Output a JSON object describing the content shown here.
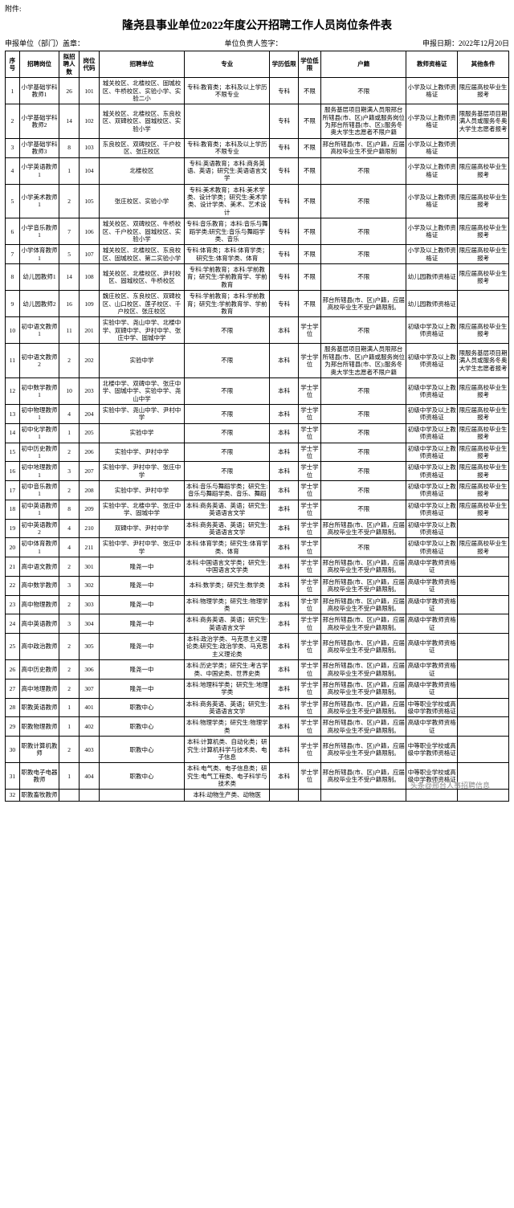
{
  "header": {
    "attachment": "附件:",
    "title": "隆尧县事业单位2022年度公开招聘工作人员岗位条件表",
    "meta_unit": "申报单位（部门）盖章：",
    "meta_signer": "单位负责人签字：",
    "meta_date": "申报日期：2022年12月20日"
  },
  "watermark": "头条@邢台人事招聘信息",
  "columns": [
    "序号",
    "招聘岗位",
    "拟招聘人数",
    "岗位代码",
    "招聘单位",
    "专业",
    "学历低限",
    "学位低限",
    "户籍",
    "教师资格证",
    "其他条件"
  ],
  "style": {
    "border_color": "#000000",
    "background_color": "#ffffff",
    "text_color": "#000000",
    "header_fontsize": 7.5,
    "cell_fontsize": 7.5,
    "title_fontsize": 14
  },
  "rows": [
    [
      "1",
      "小学基础学科教师1",
      "26",
      "101",
      "城关校区、北楼校区、固城校区、牛桥校区、实验小学、实验二小",
      "专科:教育类；本科及以上学历不限专业",
      "专科",
      "不限",
      "不限",
      "小学及以上教师资格证",
      "限应届高校毕业生报考"
    ],
    [
      "2",
      "小学基础学科教师2",
      "14",
      "102",
      "城关校区、北楼校区、东良校区、双碑校区、固城校区、实验小学",
      "",
      "专科",
      "不限",
      "服务基层项目期满人员限邢台所辖县(市、区)户籍或服务岗位为邢台所辖县(市、区);服务冬奥大学生志愿者不限户籍",
      "小学及以上教师资格证",
      "限服务基层项目期满人员或服务冬奥大学生志愿者报考"
    ],
    [
      "3",
      "小学基础学科教师3",
      "8",
      "103",
      "东良校区、双碑校区、千户校区、张庄校区",
      "专科:教育类；本科及以上学历不限专业",
      "专科",
      "不限",
      "邢台所辖县(市、区)户籍，应届高校毕业生不受户籍限制",
      "小学及以上教师资格证",
      ""
    ],
    [
      "4",
      "小学英语教师1",
      "1",
      "104",
      "北楼校区",
      "专科:英语教育；本科:商务英语、英语；研究生:英语语言文学",
      "专科",
      "不限",
      "不限",
      "小学及以上教师资格证",
      "限应届高校毕业生报考"
    ],
    [
      "5",
      "小学美术教师1",
      "2",
      "105",
      "张庄校区、实验小学",
      "专科:美术教育；本科:美术学类、设计学类；研究生:美术学类、设计学类、美术、艺术设计",
      "专科",
      "不限",
      "不限",
      "小学及以上教师资格证",
      "限应届高校毕业生报考"
    ],
    [
      "6",
      "小学音乐教师1",
      "7",
      "106",
      "城关校区、双碑校区、牛桥校区、千户校区、固城校区、实验小学",
      "专科:音乐教育；本科:音乐与舞蹈学类;研究生:音乐与舞蹈学类、音乐",
      "专科",
      "不限",
      "不限",
      "小学及以上教师资格证",
      "限应届高校毕业生报考"
    ],
    [
      "7",
      "小学体育教师1",
      "5",
      "107",
      "城关校区、北楼校区、东良校区、固城校区、第二实验小学",
      "专科:体育类；本科:体育学类；研究生:体育学类、体育",
      "专科",
      "不限",
      "不限",
      "小学及以上教师资格证",
      "限应届高校毕业生报考"
    ],
    [
      "8",
      "幼儿园教师1",
      "14",
      "108",
      "城关校区、北楼校区、尹村校区、固城校区、牛桥校区",
      "专科:学前教育；本科:学前教育；研究生:学前教育学、学前教育",
      "专科",
      "不限",
      "不限",
      "幼儿园教师资格证",
      "限应届高校毕业生报考"
    ],
    [
      "9",
      "幼儿园教师2",
      "16",
      "109",
      "魏庄校区、东良校区、双碑校区、山口校区、莲子校区、千户校区、张庄校区",
      "专科:学前教育；本科:学前教育；研究生:学前教育学、学前教育",
      "专科",
      "不限",
      "邢台所辖县(市、区)户籍，应届高校毕业生不受户籍限制。",
      "幼儿园教师资格证",
      ""
    ],
    [
      "10",
      "初中语文教师1",
      "11",
      "201",
      "实验中学、尧山中学、北楼中学、双碑中学、尹村中学、张庄中学、固城中学",
      "不限",
      "本科",
      "学士学位",
      "不限",
      "初级中学及以上教师资格证",
      "限应届高校毕业生报考"
    ],
    [
      "11",
      "初中语文教师2",
      "2",
      "202",
      "实验中学",
      "不限",
      "本科",
      "学士学位",
      "服务基层项目期满人员限邢台所辖县(市、区)户籍或服务岗位为邢台所辖县(市、区);服务冬奥大学生志愿者不限户籍",
      "初级中学及以上教师资格证",
      "限服务基层项目期满人员或服务冬奥大学生志愿者报考"
    ],
    [
      "12",
      "初中数学教师1",
      "10",
      "203",
      "北楼中学、双碑中学、张庄中学、固城中学、实验中学、尧山中学",
      "不限",
      "本科",
      "学士学位",
      "不限",
      "初级中学及以上教师资格证",
      "限应届高校毕业生报考"
    ],
    [
      "13",
      "初中物理教师1",
      "4",
      "204",
      "实验中学、尧山中学、尹村中学",
      "不限",
      "本科",
      "学士学位",
      "不限",
      "初级中学及以上教师资格证",
      "限应届高校毕业生报考"
    ],
    [
      "14",
      "初中化学教师1",
      "1",
      "205",
      "实验中学",
      "不限",
      "本科",
      "学士学位",
      "不限",
      "初级中学及以上教师资格证",
      "限应届高校毕业生报考"
    ],
    [
      "15",
      "初中历史教师1",
      "2",
      "206",
      "实验中学、尹村中学",
      "不限",
      "本科",
      "学士学位",
      "不限",
      "初级中学及以上教师资格证",
      "限应届高校毕业生报考"
    ],
    [
      "16",
      "初中地理教师1",
      "3",
      "207",
      "实验中学、尹村中学、张庄中学",
      "不限",
      "本科",
      "学士学位",
      "不限",
      "初级中学及以上教师资格证",
      "限应届高校毕业生报考"
    ],
    [
      "17",
      "初中音乐教师1",
      "2",
      "208",
      "实验中学、尹村中学",
      "本科:音乐与舞蹈学类；研究生:音乐与舞蹈学类、音乐、舞蹈",
      "本科",
      "学士学位",
      "不限",
      "初级中学及以上教师资格证",
      "限应届高校毕业生报考"
    ],
    [
      "18",
      "初中英语教师1",
      "8",
      "209",
      "实验中学、北楼中学、张庄中学、固城中学",
      "本科:商务英语、英语；研究生:英语语言文学",
      "本科",
      "学士学位",
      "不限",
      "初级中学及以上教师资格证",
      "限应届高校毕业生报考"
    ],
    [
      "19",
      "初中英语教师2",
      "4",
      "210",
      "双碑中学、尹村中学",
      "本科:商务英语、英语；研究生:英语语言文学",
      "本科",
      "学士学位",
      "邢台所辖县(市、区)户籍，应届高校毕业生不受户籍限制。",
      "初级中学及以上教师资格证",
      ""
    ],
    [
      "20",
      "初中体育教师1",
      "4",
      "211",
      "实验中学、尹村中学、张庄中学",
      "本科:体育学类；研究生:体育学类、体育",
      "本科",
      "学士学位",
      "不限",
      "初级中学及以上教师资格证",
      "限应届高校毕业生报考"
    ],
    [
      "21",
      "高中语文教师",
      "2",
      "301",
      "隆尧一中",
      "本科:中国语言文学类；研究生:中国语言文学类",
      "本科",
      "学士学位",
      "邢台所辖县(市、区)户籍，应届高校毕业生不受户籍限制。",
      "高级中学教师资格证",
      ""
    ],
    [
      "22",
      "高中数学教师",
      "3",
      "302",
      "隆尧一中",
      "本科:数学类；研究生:数学类",
      "本科",
      "学士学位",
      "邢台所辖县(市、区)户籍，应届高校毕业生不受户籍限制。",
      "高级中学教师资格证",
      ""
    ],
    [
      "23",
      "高中物理教师",
      "2",
      "303",
      "隆尧一中",
      "本科:物理学类；研究生:物理学类",
      "本科",
      "学士学位",
      "邢台所辖县(市、区)户籍，应届高校毕业生不受户籍限制。",
      "高级中学教师资格证",
      ""
    ],
    [
      "24",
      "高中英语教师",
      "3",
      "304",
      "隆尧一中",
      "本科:商务英语、英语；研究生:英语语言文学",
      "本科",
      "学士学位",
      "邢台所辖县(市、区)户籍，应届高校毕业生不受户籍限制。",
      "高级中学教师资格证",
      ""
    ],
    [
      "25",
      "高中政治教师",
      "2",
      "305",
      "隆尧一中",
      "本科:政治学类、马克思主义理论类;研究生:政治学类、马克思主义理论类",
      "本科",
      "学士学位",
      "邢台所辖县(市、区)户籍，应届高校毕业生不受户籍限制。",
      "高级中学教师资格证",
      ""
    ],
    [
      "26",
      "高中历史教师",
      "2",
      "306",
      "隆尧一中",
      "本科:历史学类；研究生:考古学类、中国史类、世界史类",
      "本科",
      "学士学位",
      "邢台所辖县(市、区)户籍，应届高校毕业生不受户籍限制。",
      "高级中学教师资格证",
      ""
    ],
    [
      "27",
      "高中地理教师",
      "2",
      "307",
      "隆尧一中",
      "本科:地理科学类；研究生:地理学类",
      "本科",
      "学士学位",
      "邢台所辖县(市、区)户籍，应届高校毕业生不受户籍限制。",
      "高级中学教师资格证",
      ""
    ],
    [
      "28",
      "职教英语教师",
      "1",
      "401",
      "职教中心",
      "本科:商务英语、英语；研究生:英语语言文学",
      "本科",
      "学士学位",
      "邢台所辖县(市、区)户籍，应届高校毕业生不受户籍限制。",
      "中等职业学校或高级中学教师资格证",
      ""
    ],
    [
      "29",
      "职教物理教师",
      "1",
      "402",
      "职教中心",
      "本科:物理学类；研究生:物理学类",
      "本科",
      "学士学位",
      "邢台所辖县(市、区)户籍，应届高校毕业生不受户籍限制。",
      "高级中学教师资格证",
      ""
    ],
    [
      "30",
      "职教计算机教师",
      "2",
      "403",
      "职教中心",
      "本科:计算机类、自动化类；研究生:计算机科学与技术类、电子信息",
      "本科",
      "学士学位",
      "邢台所辖县(市、区)户籍，应届高校毕业生不受户籍限制。",
      "中等职业学校或高级中学教师资格证",
      ""
    ],
    [
      "31",
      "职教电子电器教师",
      "1",
      "404",
      "职教中心",
      "本科:电气类、电子信息类；研究生:电气工程类、电子科学与技术类",
      "本科",
      "学士学位",
      "邢台所辖县(市、区)户籍，应届高校毕业生不受户籍限制。",
      "中等职业学校或高级中学教师资格证",
      ""
    ],
    [
      "32",
      "职教畜牧教师",
      "",
      "",
      "",
      "本科:动物生产类、动物医",
      "",
      "",
      "",
      "",
      ""
    ]
  ]
}
